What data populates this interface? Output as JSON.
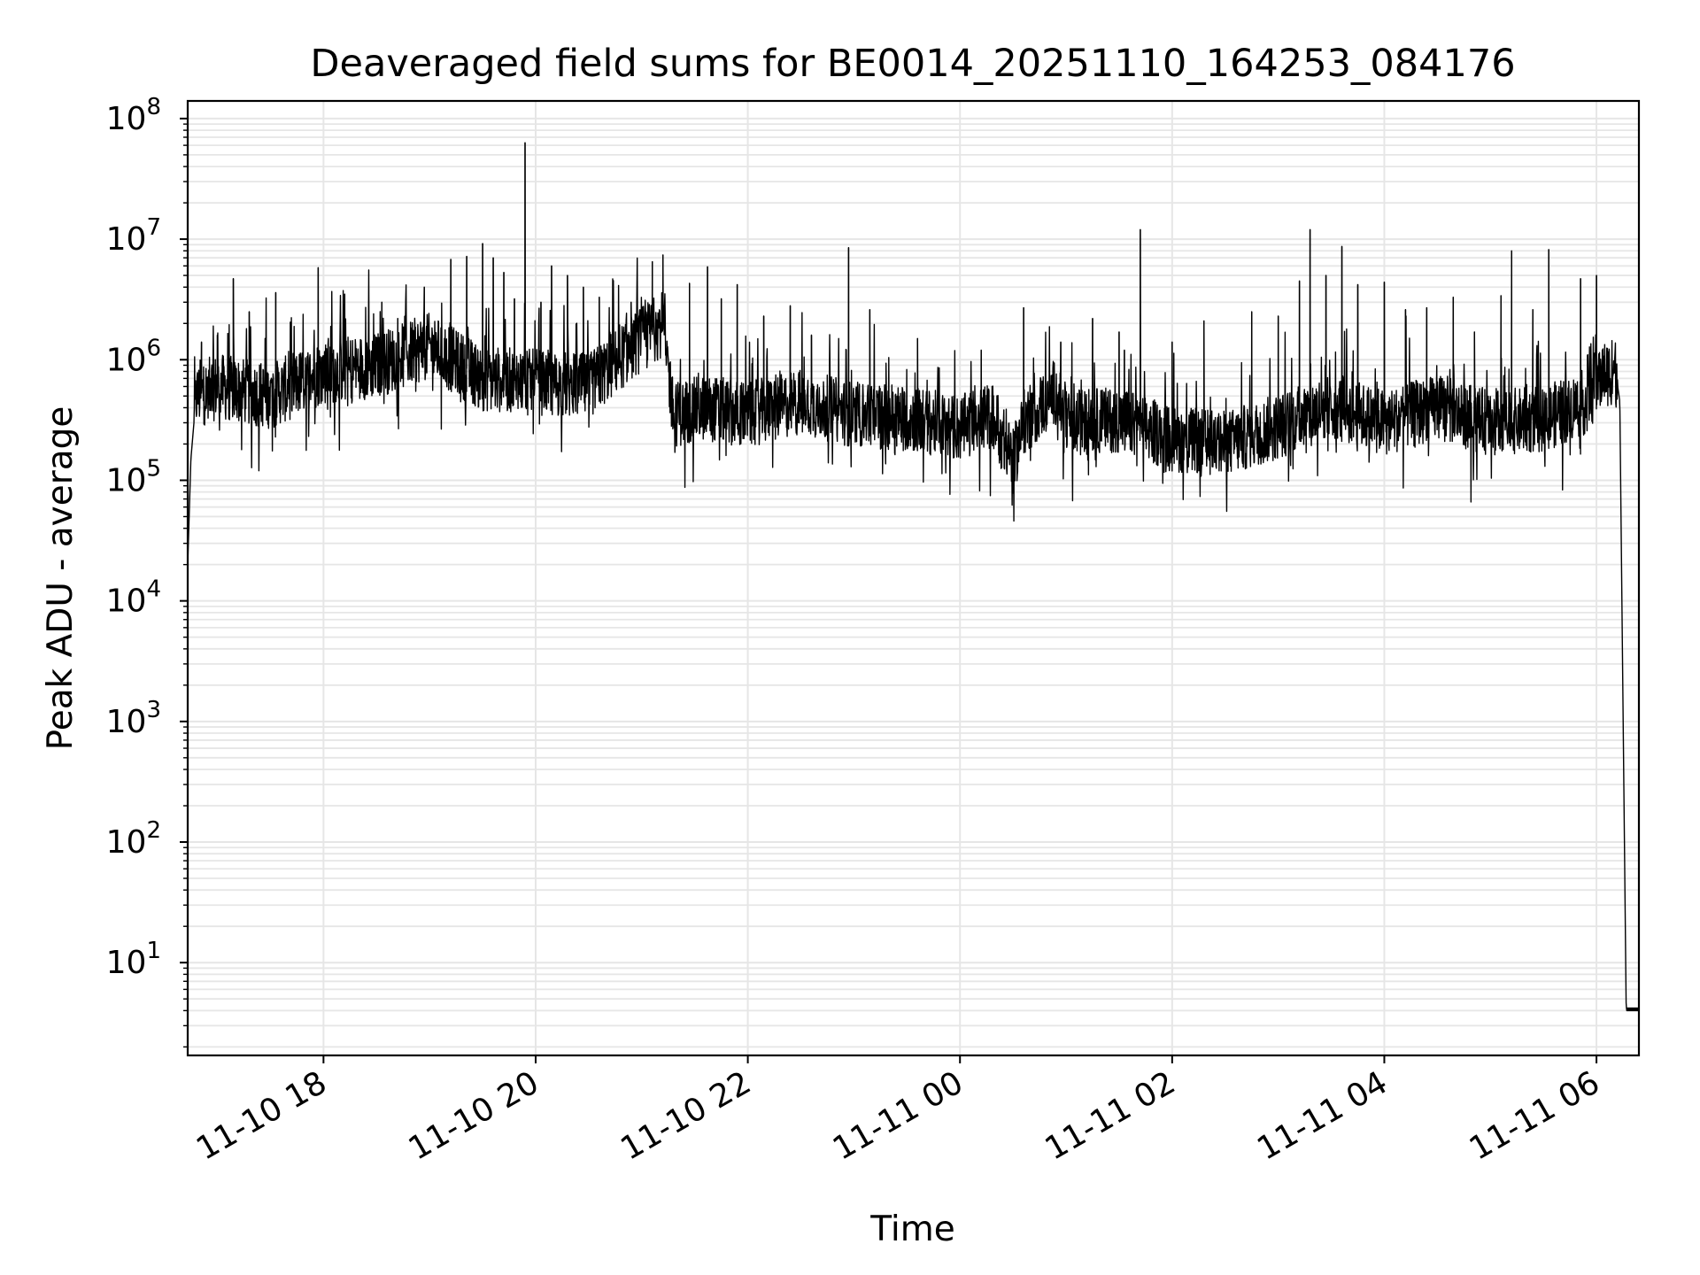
{
  "chart_data": {
    "type": "line",
    "title": "Deaveraged field sums for BE0014_20251110_164253_084176",
    "xlabel": "Time",
    "ylabel": "Peak ADU - average",
    "yscale": "log",
    "ylim": [
      1.7,
      140000000
    ],
    "x_unit": "hours since 2025-11-10 00:00",
    "xlim": [
      16.72,
      30.4
    ],
    "grid": true,
    "x_ticks": [
      {
        "value": 18,
        "label": "11-10 18"
      },
      {
        "value": 20,
        "label": "11-10 20"
      },
      {
        "value": 22,
        "label": "11-10 22"
      },
      {
        "value": 24,
        "label": "11-11 00"
      },
      {
        "value": 26,
        "label": "11-11 02"
      },
      {
        "value": 28,
        "label": "11-11 04"
      },
      {
        "value": 30,
        "label": "11-11 06"
      }
    ],
    "y_ticks": [
      {
        "exp": 1,
        "base": "10",
        "sup": "1"
      },
      {
        "exp": 2,
        "base": "10",
        "sup": "2"
      },
      {
        "exp": 3,
        "base": "10",
        "sup": "3"
      },
      {
        "exp": 4,
        "base": "10",
        "sup": "4"
      },
      {
        "exp": 5,
        "base": "10",
        "sup": "5"
      },
      {
        "exp": 6,
        "base": "10",
        "sup": "6"
      },
      {
        "exp": 7,
        "base": "10",
        "sup": "7"
      },
      {
        "exp": 8,
        "base": "10",
        "sup": "8"
      }
    ],
    "series": [
      {
        "name": "Deaveraged field sum",
        "color": "#000000",
        "baseline_points": [
          [
            16.72,
            20000
          ],
          [
            16.75,
            150000
          ],
          [
            16.8,
            500000
          ],
          [
            17.0,
            600000
          ],
          [
            17.5,
            500000
          ],
          [
            18.0,
            800000
          ],
          [
            18.5,
            900000
          ],
          [
            19.0,
            1300000
          ],
          [
            19.5,
            700000
          ],
          [
            20.0,
            650000
          ],
          [
            20.5,
            600000
          ],
          [
            21.0,
            1500000
          ],
          [
            21.2,
            2000000
          ],
          [
            21.3,
            350000
          ],
          [
            21.6,
            400000
          ],
          [
            22.0,
            350000
          ],
          [
            22.5,
            450000
          ],
          [
            23.0,
            350000
          ],
          [
            23.5,
            330000
          ],
          [
            24.0,
            270000
          ],
          [
            24.3,
            350000
          ],
          [
            24.5,
            140000
          ],
          [
            24.6,
            300000
          ],
          [
            24.9,
            550000
          ],
          [
            25.0,
            300000
          ],
          [
            25.5,
            320000
          ],
          [
            26.0,
            220000
          ],
          [
            26.5,
            200000
          ],
          [
            27.0,
            280000
          ],
          [
            27.5,
            420000
          ],
          [
            28.0,
            300000
          ],
          [
            28.5,
            400000
          ],
          [
            29.0,
            300000
          ],
          [
            29.5,
            320000
          ],
          [
            29.9,
            450000
          ],
          [
            30.05,
            750000
          ],
          [
            30.18,
            800000
          ],
          [
            30.22,
            450000
          ],
          [
            30.28,
            4.2
          ],
          [
            30.4,
            4.2
          ]
        ],
        "spikes": [
          [
            16.85,
            1400000
          ],
          [
            17.0,
            1600000
          ],
          [
            17.15,
            4700000
          ],
          [
            17.3,
            2500000
          ],
          [
            17.55,
            3600000
          ],
          [
            17.95,
            5800000
          ],
          [
            18.2,
            3500000
          ],
          [
            18.55,
            3000000
          ],
          [
            18.7,
            2200000
          ],
          [
            18.95,
            4000000
          ],
          [
            19.2,
            6800000
          ],
          [
            19.35,
            7200000
          ],
          [
            19.5,
            9200000
          ],
          [
            19.6,
            7000000
          ],
          [
            19.7,
            5300000
          ],
          [
            19.8,
            3200000
          ],
          [
            19.9,
            63000000
          ],
          [
            20.05,
            3000000
          ],
          [
            20.15,
            6000000
          ],
          [
            20.3,
            5000000
          ],
          [
            20.45,
            4000000
          ],
          [
            20.6,
            3300000
          ],
          [
            20.9,
            3000000
          ],
          [
            21.1,
            6500000
          ],
          [
            21.2,
            7400000
          ],
          [
            21.45,
            4300000
          ],
          [
            21.62,
            5900000
          ],
          [
            21.75,
            3200000
          ],
          [
            21.9,
            4200000
          ],
          [
            22.15,
            2300000
          ],
          [
            22.4,
            2800000
          ],
          [
            22.6,
            1600000
          ],
          [
            22.95,
            8500000
          ],
          [
            23.15,
            2600000
          ],
          [
            23.6,
            1500000
          ],
          [
            24.2,
            1200000
          ],
          [
            24.6,
            2700000
          ],
          [
            24.95,
            1400000
          ],
          [
            25.25,
            2200000
          ],
          [
            25.5,
            1700000
          ],
          [
            25.55,
            1200000
          ],
          [
            25.7,
            12000000
          ],
          [
            26.0,
            1400000
          ],
          [
            26.3,
            2100000
          ],
          [
            26.75,
            2500000
          ],
          [
            27.0,
            2300000
          ],
          [
            27.2,
            4500000
          ],
          [
            27.3,
            12000000
          ],
          [
            27.45,
            5000000
          ],
          [
            27.6,
            8700000
          ],
          [
            27.75,
            4200000
          ],
          [
            28.0,
            4400000
          ],
          [
            28.2,
            2600000
          ],
          [
            28.4,
            2700000
          ],
          [
            28.65,
            3300000
          ],
          [
            28.85,
            1700000
          ],
          [
            29.1,
            3400000
          ],
          [
            29.2,
            8000000
          ],
          [
            29.4,
            2600000
          ],
          [
            29.55,
            8200000
          ],
          [
            29.85,
            4700000
          ],
          [
            30.0,
            5000000
          ]
        ]
      }
    ]
  }
}
